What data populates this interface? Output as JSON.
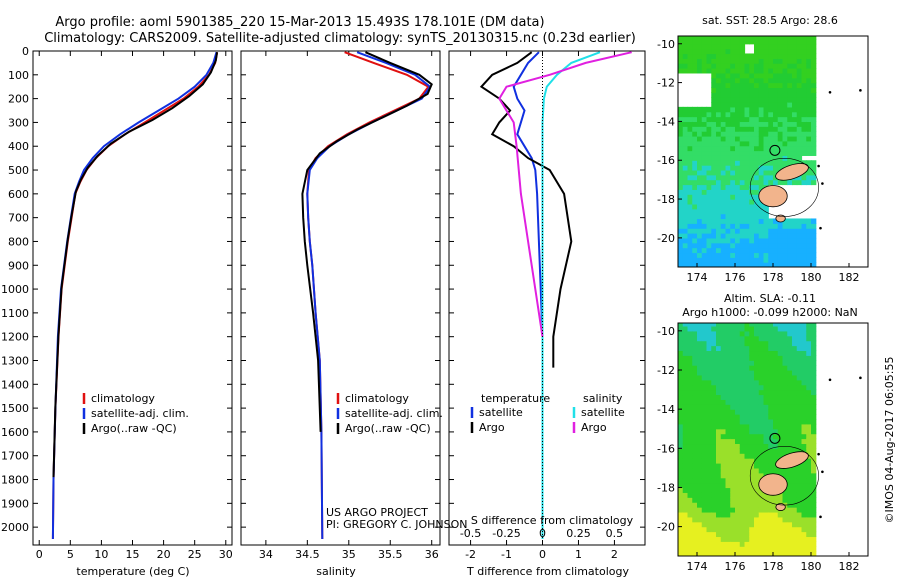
{
  "header": {
    "line1": "Argo profile: aoml 5901385_220 15-Mar-2013 15.493S 178.101E (DM data)",
    "line2": "Climatology: CARS2009. Satellite-adjusted climatology: synTS_20130315.nc (0.23d earlier)"
  },
  "colors": {
    "climatology": "#e01010",
    "satellite": "#1030e0",
    "argo": "#000000",
    "sat_salinity": "#20e0e8",
    "argo_salinity": "#e020e0",
    "land": "#f2b48c"
  },
  "chart_data": [
    {
      "type": "line",
      "id": "temperature",
      "xlabel": "temperature (deg C)",
      "ylabel": "",
      "xlim": [
        -1,
        31
      ],
      "ylim": [
        2075,
        0
      ],
      "xticks": [
        0,
        5,
        10,
        15,
        20,
        25,
        30
      ],
      "xtick_labels": [
        "0",
        "5",
        "10",
        "15",
        "20",
        "25",
        "30"
      ],
      "yticks": [
        0,
        100,
        200,
        300,
        400,
        500,
        600,
        700,
        800,
        900,
        1000,
        1100,
        1200,
        1300,
        1400,
        1500,
        1600,
        1700,
        1800,
        1900,
        2000
      ],
      "ytick_labels": [
        "0",
        "100",
        "200",
        "300",
        "400",
        "500",
        "600",
        "700",
        "800",
        "900",
        "1000",
        "1100",
        "1200",
        "1300",
        "1400",
        "1500",
        "1600",
        "1700",
        "1800",
        "1900",
        "2000"
      ],
      "legend": [
        "climatology",
        "satellite-adj. clim.",
        "Argo(..raw -QC)"
      ],
      "legend_position": "lower-right",
      "series": [
        {
          "name": "climatology",
          "color": "#e01010",
          "x": [
            28.6,
            28.3,
            27.3,
            25.6,
            23.2,
            20.1,
            17.0,
            13.8,
            11.1,
            9.1,
            7.6,
            6.6,
            5.8,
            5.2,
            4.6,
            4.1,
            3.6,
            3.1,
            2.6,
            2.3,
            2.2
          ],
          "y": [
            5,
            50,
            100,
            150,
            200,
            250,
            300,
            350,
            400,
            450,
            500,
            550,
            600,
            700,
            800,
            900,
            1000,
            1200,
            1500,
            1800,
            2050
          ]
        },
        {
          "name": "satellite-adj. clim.",
          "color": "#1030e0",
          "x": [
            28.5,
            28.0,
            26.9,
            25.0,
            22.4,
            19.2,
            16.0,
            13.0,
            10.4,
            8.6,
            7.2,
            6.4,
            5.7,
            5.1,
            4.5,
            4.0,
            3.5,
            3.0,
            2.6,
            2.3,
            2.2
          ],
          "y": [
            5,
            50,
            100,
            150,
            200,
            250,
            300,
            350,
            400,
            450,
            500,
            550,
            600,
            700,
            800,
            900,
            1000,
            1200,
            1500,
            1800,
            2050
          ]
        },
        {
          "name": "Argo",
          "color": "#000000",
          "x": [
            28.6,
            28.4,
            27.6,
            26.3,
            24.1,
            21.4,
            18.2,
            14.4,
            11.5,
            9.4,
            7.8,
            6.7,
            5.9,
            5.2,
            4.6,
            4.1,
            3.6,
            3.1,
            2.6,
            2.3
          ],
          "y": [
            5,
            40,
            90,
            140,
            190,
            240,
            290,
            340,
            390,
            440,
            490,
            540,
            590,
            690,
            790,
            890,
            990,
            1190,
            1490,
            1790
          ]
        }
      ]
    },
    {
      "type": "line",
      "id": "salinity",
      "xlabel": "salinity",
      "xlim": [
        33.7,
        36.1
      ],
      "ylim": [
        2075,
        0
      ],
      "xticks": [
        34,
        34.5,
        35,
        35.5,
        36
      ],
      "xtick_labels": [
        "34",
        "34.5",
        "35",
        "35.5",
        "36"
      ],
      "legend": [
        "climatology",
        "satellite-adj. clim.",
        "Argo(..raw -QC)"
      ],
      "legend_position": "lower-right",
      "credit_1": "US ARGO PROJECT",
      "credit_2": "PI: GREGORY C. JOHNSON",
      "series": [
        {
          "name": "climatology",
          "color": "#e01010",
          "x": [
            34.95,
            35.3,
            35.7,
            35.96,
            35.85,
            35.55,
            35.25,
            34.98,
            34.75,
            34.6,
            34.52,
            34.5,
            34.51,
            34.53,
            34.56,
            34.6,
            34.65,
            34.67,
            34.68
          ],
          "y": [
            5,
            50,
            100,
            150,
            200,
            250,
            300,
            350,
            400,
            450,
            500,
            600,
            700,
            800,
            900,
            1100,
            1300,
            1600,
            2050
          ]
        },
        {
          "name": "satellite-adj. clim.",
          "color": "#1030e0",
          "x": [
            35.1,
            35.45,
            35.8,
            35.98,
            35.88,
            35.58,
            35.28,
            35.0,
            34.77,
            34.62,
            34.53,
            34.5,
            34.51,
            34.53,
            34.56,
            34.6,
            34.65,
            34.67,
            34.68
          ],
          "y": [
            5,
            50,
            100,
            150,
            200,
            250,
            300,
            350,
            400,
            450,
            500,
            600,
            700,
            800,
            900,
            1100,
            1300,
            1600,
            2050
          ]
        },
        {
          "name": "Argo",
          "color": "#000000",
          "x": [
            35.2,
            35.5,
            35.85,
            36.0,
            35.95,
            35.7,
            35.4,
            35.1,
            34.85,
            34.65,
            34.5,
            34.44,
            34.45,
            34.47,
            34.5,
            34.57,
            34.63,
            34.66
          ],
          "y": [
            5,
            50,
            100,
            140,
            180,
            230,
            280,
            330,
            380,
            430,
            500,
            600,
            700,
            800,
            900,
            1100,
            1300,
            1600
          ]
        }
      ]
    },
    {
      "type": "line",
      "id": "difference",
      "xlabel": "T difference from climatology",
      "xlabel_top": "S difference from climatology",
      "xlim": [
        -2.6,
        2.85
      ],
      "ylim": [
        2075,
        0
      ],
      "xticks": [
        -2,
        -1,
        0,
        1,
        2
      ],
      "xtick_labels": [
        "-2",
        "-1",
        "0",
        "1",
        "2"
      ],
      "sticks": [
        -0.5,
        -0.25,
        0,
        0.25,
        0.5
      ],
      "stick_labels": [
        "-0.5",
        "-0.25",
        "0",
        "0.25",
        "0.5"
      ],
      "s_scale": 4,
      "legend_temperature_title": "temperature",
      "legend_salinity_title": "salinity",
      "legend_labels": {
        "satellite": "satellite",
        "argo": "Argo"
      },
      "series": [
        {
          "name": "T satellite",
          "color": "#1030e0",
          "x": [
            -0.1,
            -0.4,
            -0.6,
            -0.8,
            -0.7,
            -0.5,
            -0.6,
            -0.7,
            -0.5,
            -0.3,
            -0.2,
            -0.15,
            -0.1,
            -0.05,
            0.0,
            0.0
          ],
          "y": [
            5,
            50,
            100,
            150,
            200,
            250,
            300,
            350,
            400,
            450,
            500,
            600,
            800,
            1000,
            1200,
            2050
          ]
        },
        {
          "name": "T Argo",
          "color": "#000000",
          "x": [
            -0.3,
            -0.7,
            -1.4,
            -1.7,
            -1.2,
            -0.9,
            -1.2,
            -1.4,
            -0.8,
            -0.4,
            0.2,
            0.6,
            0.8,
            0.5,
            0.3,
            0.3
          ],
          "y": [
            5,
            50,
            100,
            150,
            200,
            250,
            300,
            350,
            400,
            450,
            500,
            600,
            800,
            1000,
            1200,
            1330
          ]
        },
        {
          "name": "S satellite",
          "color": "#20e0e8",
          "x": [
            0.4,
            0.2,
            0.1,
            0.03,
            0.01,
            0.0,
            0.0,
            0.0,
            0.0,
            0.0
          ],
          "y": [
            5,
            50,
            100,
            150,
            200,
            300,
            500,
            1000,
            1500,
            2050
          ]
        },
        {
          "name": "S Argo",
          "color": "#e020e0",
          "x": [
            0.62,
            0.3,
            0.05,
            -0.25,
            -0.3,
            -0.2,
            -0.18,
            -0.15,
            -0.1,
            -0.05,
            0.0
          ],
          "y": [
            5,
            50,
            100,
            150,
            200,
            300,
            400,
            600,
            800,
            1000,
            1200
          ]
        }
      ]
    },
    {
      "type": "heatmap",
      "id": "sst_map",
      "title": "sat. SST: 28.5 Argo: 28.6",
      "xlim": [
        173,
        183
      ],
      "ylim": [
        -21.5,
        -9.6
      ],
      "xticks": [
        174,
        176,
        178,
        180,
        182
      ],
      "xtick_labels": [
        "174",
        "176",
        "178",
        "180",
        "182"
      ],
      "yticks": [
        -10,
        -12,
        -14,
        -16,
        -18,
        -20
      ],
      "ytick_labels": [
        "-10",
        "-12",
        "-14",
        "-16",
        "-18",
        "-20"
      ],
      "data_extent_lon": [
        173,
        180.2
      ],
      "colormap": [
        "#17b0ff",
        "#22d4c8",
        "#33dd66",
        "#22cc33",
        "#33d020"
      ],
      "argo_position": {
        "lon": 178.1,
        "lat": -15.49
      }
    },
    {
      "type": "heatmap",
      "id": "sla_map",
      "title": "Altim. SLA: -0.11",
      "subtitle": "Argo h1000: -0.099 h2000: NaN",
      "xlim": [
        173,
        183
      ],
      "ylim": [
        -21.5,
        -9.6
      ],
      "xticks": [
        174,
        176,
        178,
        180,
        182
      ],
      "xtick_labels": [
        "174",
        "176",
        "178",
        "180",
        "182"
      ],
      "yticks": [
        -10,
        -12,
        -14,
        -16,
        -18,
        -20
      ],
      "ytick_labels": [
        "-10",
        "-12",
        "-14",
        "-16",
        "-18",
        "-20"
      ],
      "data_extent_lon": [
        173,
        180.2
      ],
      "colormap": [
        "#22c8cc",
        "#22cc66",
        "#2ad12a",
        "#9ae02a",
        "#e6f020"
      ],
      "argo_position": {
        "lon": 178.1,
        "lat": -15.49
      }
    }
  ],
  "footer": {
    "stamp": "©IMOS 04-Aug-2017 06:05:55"
  }
}
